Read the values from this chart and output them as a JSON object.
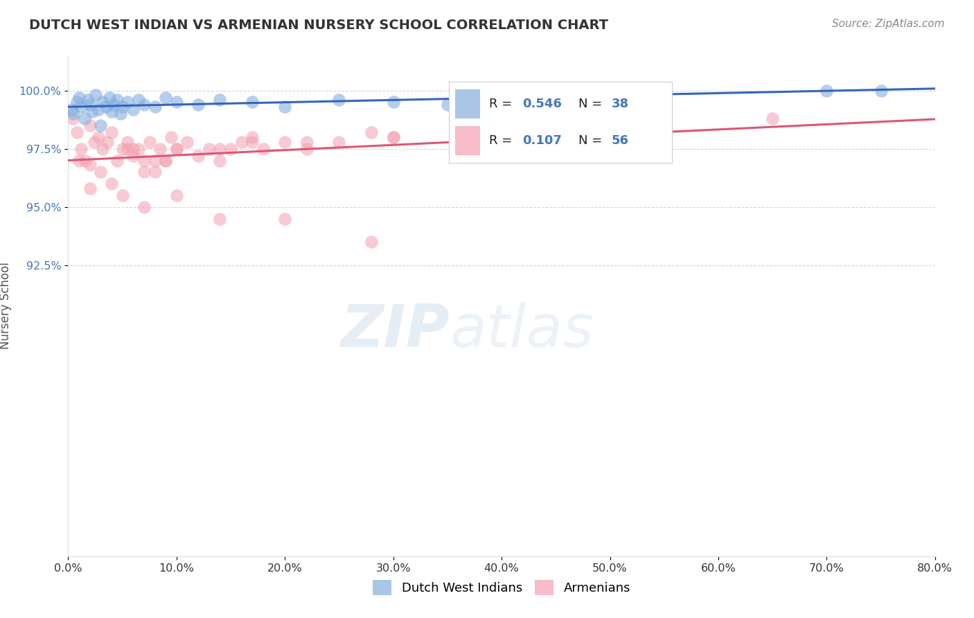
{
  "title": "DUTCH WEST INDIAN VS ARMENIAN NURSERY SCHOOL CORRELATION CHART",
  "source_text": "Source: ZipAtlas.com",
  "ylabel": "Nursery School",
  "xlabel": "",
  "x_min": 0.0,
  "x_max": 80.0,
  "y_min": 80.0,
  "y_max": 101.5,
  "y_tick_vals": [
    92.5,
    95.0,
    97.5,
    100.0
  ],
  "x_ticks": [
    0.0,
    10.0,
    20.0,
    30.0,
    40.0,
    50.0,
    60.0,
    70.0,
    80.0
  ],
  "blue_R": 0.546,
  "blue_N": 38,
  "pink_R": 0.107,
  "pink_N": 56,
  "blue_color": "#85AEDE",
  "pink_color": "#F4A0B0",
  "blue_line_color": "#3366BB",
  "pink_line_color": "#E05575",
  "watermark_zip": "ZIP",
  "watermark_atlas": "atlas",
  "blue_scatter_x": [
    0.3,
    0.5,
    0.8,
    1.0,
    1.2,
    1.5,
    1.8,
    2.0,
    2.2,
    2.5,
    2.8,
    3.0,
    3.2,
    3.5,
    3.8,
    4.0,
    4.2,
    4.5,
    4.8,
    5.0,
    5.5,
    6.0,
    6.5,
    7.0,
    8.0,
    9.0,
    10.0,
    12.0,
    14.0,
    17.0,
    20.0,
    25.0,
    30.0,
    35.0,
    45.0,
    55.0,
    70.0,
    75.0
  ],
  "blue_scatter_y": [
    99.2,
    99.0,
    99.5,
    99.7,
    99.3,
    98.8,
    99.6,
    99.4,
    99.1,
    99.8,
    99.2,
    98.5,
    99.5,
    99.3,
    99.7,
    99.1,
    99.4,
    99.6,
    99.0,
    99.3,
    99.5,
    99.2,
    99.6,
    99.4,
    99.3,
    99.7,
    99.5,
    99.4,
    99.6,
    99.5,
    99.3,
    99.6,
    99.5,
    99.4,
    100.0,
    99.8,
    100.0,
    100.0
  ],
  "pink_scatter_x": [
    0.4,
    0.8,
    1.2,
    1.6,
    2.0,
    2.4,
    2.8,
    3.2,
    3.6,
    4.0,
    4.5,
    5.0,
    5.5,
    6.0,
    6.5,
    7.0,
    7.5,
    8.0,
    8.5,
    9.0,
    9.5,
    10.0,
    11.0,
    12.0,
    13.0,
    14.0,
    15.0,
    16.0,
    17.0,
    18.0,
    20.0,
    22.0,
    25.0,
    28.0,
    1.0,
    2.0,
    3.0,
    4.0,
    5.5,
    7.0,
    9.0,
    30.0,
    38.0,
    45.0,
    50.0,
    55.0,
    14.0,
    22.0,
    6.0,
    8.0,
    10.0,
    17.0,
    30.0,
    42.0,
    52.0,
    65.0
  ],
  "pink_scatter_y": [
    98.8,
    98.2,
    97.5,
    97.0,
    98.5,
    97.8,
    98.0,
    97.5,
    97.8,
    98.2,
    97.0,
    97.5,
    97.8,
    97.2,
    97.5,
    97.0,
    97.8,
    96.5,
    97.5,
    97.0,
    98.0,
    97.5,
    97.8,
    97.2,
    97.5,
    97.0,
    97.5,
    97.8,
    98.0,
    97.5,
    97.8,
    97.5,
    97.8,
    98.2,
    97.0,
    96.8,
    96.5,
    96.0,
    97.5,
    96.5,
    97.0,
    98.0,
    98.5,
    98.5,
    98.5,
    98.5,
    97.5,
    97.8,
    97.5,
    97.0,
    97.5,
    97.8,
    98.0,
    98.2,
    98.5,
    98.8
  ],
  "pink_low_x": [
    2.0,
    5.0,
    7.0,
    10.0,
    14.0,
    20.0,
    28.0
  ],
  "pink_low_y": [
    95.8,
    95.5,
    95.0,
    95.5,
    94.5,
    94.5,
    93.5
  ],
  "background_color": "#FFFFFF",
  "grid_color": "#CCCCCC",
  "title_color": "#333333",
  "source_color": "#888888",
  "axis_label_color": "#555555",
  "tick_color_x": "#333333",
  "tick_color_y": "#4477BB",
  "legend_box_color": "#FFFFFF",
  "legend_border_color": "#CCCCCC"
}
